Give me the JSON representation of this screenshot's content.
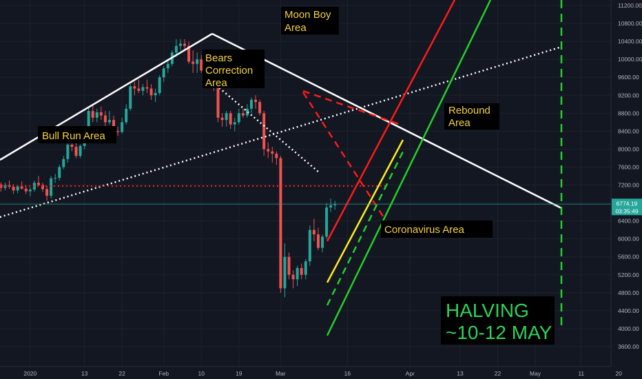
{
  "chart_data": {
    "type": "candlestick",
    "y_ticks": [
      3600,
      4000,
      4400,
      4800,
      5200,
      5600,
      6000,
      6400,
      6800,
      7200,
      7600,
      8000,
      8400,
      8800,
      9200,
      9600,
      10000,
      10400,
      10800,
      11200
    ],
    "y_tick_labels": [
      "3600.00",
      "4000.00",
      "4400.00",
      "4800.00",
      "5200.00",
      "5600.00",
      "6000.00",
      "6400.00",
      "6800.00",
      "7200.00",
      "7600.00",
      "8000.00",
      "8400.00",
      "8800.00",
      "9200.00",
      "9600.00",
      "10000.00",
      "10400.00",
      "10800.00",
      "11200.00"
    ],
    "x_tick_labels": [
      "2020",
      "13",
      "22",
      "Feb",
      "10",
      "19",
      "Mar",
      "16",
      "Apr",
      "13",
      "22",
      "May",
      "11",
      "20"
    ],
    "x_tick_days": [
      -3,
      10,
      19,
      29,
      38,
      47,
      57,
      73,
      88,
      100,
      109,
      118,
      129,
      138
    ],
    "current_price": "6774.19",
    "countdown": "03:35:49",
    "colors": {
      "up": "#26a69a",
      "down": "#ef5350",
      "white": "#ffffff",
      "red": "#ff1a1a",
      "green": "#22d12a",
      "yellow": "#ffee20"
    },
    "annotations": {
      "bull_run": "Bull Run Area",
      "bears_1": "Bears",
      "bears_2": "Correction",
      "bears_3": "Area",
      "moon_1": "Moon Boy",
      "moon_2": "Area",
      "rebound_1": "Rebound",
      "rebound_2": "Area",
      "corona": "Coronavirus Area",
      "halving_1": "HALVING",
      "halving_2": "~10-12 MAY"
    },
    "candles": [
      {
        "o": 7210,
        "h": 7260,
        "l": 7050,
        "c": 7140
      },
      {
        "o": 7140,
        "h": 7250,
        "l": 7080,
        "c": 7200
      },
      {
        "o": 7200,
        "h": 7300,
        "l": 7120,
        "c": 7160
      },
      {
        "o": 7160,
        "h": 7220,
        "l": 7000,
        "c": 7080
      },
      {
        "o": 7080,
        "h": 7200,
        "l": 7020,
        "c": 7170
      },
      {
        "o": 7170,
        "h": 7280,
        "l": 7100,
        "c": 7120
      },
      {
        "o": 7120,
        "h": 7190,
        "l": 7000,
        "c": 7060
      },
      {
        "o": 7060,
        "h": 7150,
        "l": 6950,
        "c": 7100
      },
      {
        "o": 7100,
        "h": 7300,
        "l": 7050,
        "c": 7250
      },
      {
        "o": 7250,
        "h": 7400,
        "l": 7180,
        "c": 7200
      },
      {
        "o": 7200,
        "h": 7250,
        "l": 7050,
        "c": 7110
      },
      {
        "o": 7110,
        "h": 7180,
        "l": 6850,
        "c": 6960
      },
      {
        "o": 6960,
        "h": 7400,
        "l": 6900,
        "c": 7350
      },
      {
        "o": 7350,
        "h": 7450,
        "l": 7250,
        "c": 7360
      },
      {
        "o": 7360,
        "h": 7650,
        "l": 7300,
        "c": 7600
      },
      {
        "o": 7600,
        "h": 7850,
        "l": 7550,
        "c": 7780
      },
      {
        "o": 7780,
        "h": 8150,
        "l": 7700,
        "c": 8100
      },
      {
        "o": 8100,
        "h": 8200,
        "l": 7950,
        "c": 8050
      },
      {
        "o": 8050,
        "h": 8200,
        "l": 7800,
        "c": 7850
      },
      {
        "o": 7850,
        "h": 8100,
        "l": 7800,
        "c": 8070
      },
      {
        "o": 8070,
        "h": 8350,
        "l": 8000,
        "c": 8300
      },
      {
        "o": 8300,
        "h": 8950,
        "l": 8250,
        "c": 8850
      },
      {
        "o": 8850,
        "h": 9000,
        "l": 8600,
        "c": 8700
      },
      {
        "o": 8700,
        "h": 8900,
        "l": 8600,
        "c": 8820
      },
      {
        "o": 8820,
        "h": 8950,
        "l": 8650,
        "c": 8750
      },
      {
        "o": 8750,
        "h": 8850,
        "l": 8500,
        "c": 8600
      },
      {
        "o": 8600,
        "h": 8850,
        "l": 8550,
        "c": 8650
      },
      {
        "o": 8650,
        "h": 8750,
        "l": 8300,
        "c": 8400
      },
      {
        "o": 8400,
        "h": 8500,
        "l": 8300,
        "c": 8380
      },
      {
        "o": 8380,
        "h": 8700,
        "l": 8350,
        "c": 8600
      },
      {
        "o": 8600,
        "h": 9000,
        "l": 8550,
        "c": 8900
      },
      {
        "o": 8900,
        "h": 9450,
        "l": 8850,
        "c": 9400
      },
      {
        "o": 9400,
        "h": 9500,
        "l": 9200,
        "c": 9350
      },
      {
        "o": 9350,
        "h": 9550,
        "l": 9250,
        "c": 9300
      },
      {
        "o": 9300,
        "h": 9450,
        "l": 9200,
        "c": 9380
      },
      {
        "o": 9380,
        "h": 9550,
        "l": 9250,
        "c": 9350
      },
      {
        "o": 9350,
        "h": 9450,
        "l": 9100,
        "c": 9200
      },
      {
        "o": 9200,
        "h": 9350,
        "l": 9050,
        "c": 9250
      },
      {
        "o": 9250,
        "h": 9650,
        "l": 9200,
        "c": 9600
      },
      {
        "o": 9600,
        "h": 9850,
        "l": 9500,
        "c": 9800
      },
      {
        "o": 9800,
        "h": 10000,
        "l": 9700,
        "c": 9900
      },
      {
        "o": 9900,
        "h": 10200,
        "l": 9850,
        "c": 10150
      },
      {
        "o": 10150,
        "h": 10450,
        "l": 10050,
        "c": 10300
      },
      {
        "o": 10300,
        "h": 10450,
        "l": 10200,
        "c": 10350
      },
      {
        "o": 10350,
        "h": 10450,
        "l": 10200,
        "c": 10300
      },
      {
        "o": 10300,
        "h": 10400,
        "l": 9900,
        "c": 9950
      },
      {
        "o": 9950,
        "h": 10200,
        "l": 9700,
        "c": 9900
      },
      {
        "o": 9900,
        "h": 10150,
        "l": 9700,
        "c": 10000
      },
      {
        "o": 10000,
        "h": 10100,
        "l": 9700,
        "c": 9750
      },
      {
        "o": 9750,
        "h": 9900,
        "l": 9600,
        "c": 9700
      },
      {
        "o": 9700,
        "h": 9800,
        "l": 9500,
        "c": 9550
      },
      {
        "o": 9550,
        "h": 9700,
        "l": 9300,
        "c": 9400
      },
      {
        "o": 9400,
        "h": 9500,
        "l": 8600,
        "c": 8700
      },
      {
        "o": 8700,
        "h": 8800,
        "l": 8500,
        "c": 8650
      },
      {
        "o": 8650,
        "h": 8850,
        "l": 8500,
        "c": 8800
      },
      {
        "o": 8800,
        "h": 8850,
        "l": 8450,
        "c": 8550
      },
      {
        "o": 8550,
        "h": 8700,
        "l": 8400,
        "c": 8600
      },
      {
        "o": 8600,
        "h": 8900,
        "l": 8550,
        "c": 8800
      },
      {
        "o": 8800,
        "h": 8900,
        "l": 8700,
        "c": 8750
      },
      {
        "o": 8750,
        "h": 9000,
        "l": 8700,
        "c": 8900
      },
      {
        "o": 8900,
        "h": 9150,
        "l": 8800,
        "c": 9100
      },
      {
        "o": 9100,
        "h": 9200,
        "l": 8900,
        "c": 9050
      },
      {
        "o": 9050,
        "h": 9100,
        "l": 8750,
        "c": 8800
      },
      {
        "o": 8800,
        "h": 8850,
        "l": 7850,
        "c": 8000
      },
      {
        "o": 8000,
        "h": 8150,
        "l": 7800,
        "c": 7950
      },
      {
        "o": 7950,
        "h": 8050,
        "l": 7700,
        "c": 7900
      },
      {
        "o": 7900,
        "h": 7950,
        "l": 7650,
        "c": 7800
      },
      {
        "o": 7800,
        "h": 7850,
        "l": 4800,
        "c": 4900
      },
      {
        "o": 4900,
        "h": 5900,
        "l": 4700,
        "c": 5600
      },
      {
        "o": 5600,
        "h": 5700,
        "l": 5100,
        "c": 5200
      },
      {
        "o": 5200,
        "h": 5300,
        "l": 4900,
        "c": 5100
      },
      {
        "o": 5100,
        "h": 5400,
        "l": 4950,
        "c": 5350
      },
      {
        "o": 5350,
        "h": 5450,
        "l": 5100,
        "c": 5200
      },
      {
        "o": 5200,
        "h": 5550,
        "l": 5100,
        "c": 5500
      },
      {
        "o": 5500,
        "h": 6300,
        "l": 5400,
        "c": 6200
      },
      {
        "o": 6200,
        "h": 6450,
        "l": 5950,
        "c": 6100
      },
      {
        "o": 6100,
        "h": 6250,
        "l": 5750,
        "c": 5800
      },
      {
        "o": 5800,
        "h": 6100,
        "l": 5700,
        "c": 6050
      },
      {
        "o": 6050,
        "h": 6800,
        "l": 6000,
        "c": 6700
      },
      {
        "o": 6700,
        "h": 6900,
        "l": 6600,
        "c": 6750
      },
      {
        "o": 6750,
        "h": 6850,
        "l": 6650,
        "c": 6774.19
      }
    ]
  }
}
